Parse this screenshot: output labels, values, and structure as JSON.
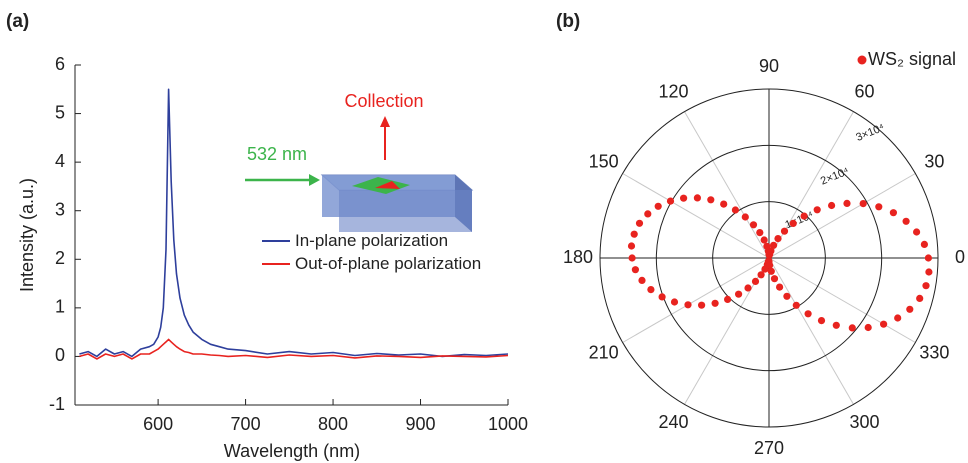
{
  "chart_data": [
    {
      "type": "line",
      "panel_label": "(a)",
      "xlabel": "Wavelength (nm)",
      "ylabel": "Intensity (a.u.)",
      "annotations": [
        "532 nm",
        "Collection"
      ],
      "x": [
        510,
        520,
        530,
        540,
        550,
        560,
        570,
        580,
        590,
        595,
        600,
        603,
        606,
        609,
        612,
        615,
        618,
        621,
        625,
        630,
        635,
        640,
        650,
        660,
        670,
        680,
        700,
        725,
        750,
        775,
        800,
        825,
        850,
        875,
        900,
        925,
        950,
        975,
        1000
      ],
      "series": [
        {
          "name": "In-plane polarization",
          "color": "#2e3f9c",
          "values": [
            0.05,
            0.1,
            0.0,
            0.15,
            0.05,
            0.1,
            0.0,
            0.15,
            0.2,
            0.25,
            0.4,
            0.6,
            1.0,
            2.2,
            5.5,
            3.6,
            2.4,
            1.7,
            1.2,
            0.85,
            0.65,
            0.5,
            0.35,
            0.25,
            0.2,
            0.15,
            0.12,
            0.05,
            0.1,
            0.05,
            0.08,
            0.02,
            0.06,
            0.03,
            0.05,
            0.0,
            0.04,
            0.02,
            0.05
          ]
        },
        {
          "name": "Out-of-plane polarization",
          "color": "#e8231f",
          "values": [
            0.0,
            0.05,
            -0.05,
            0.05,
            0.0,
            0.05,
            -0.05,
            0.05,
            0.05,
            0.1,
            0.15,
            0.2,
            0.25,
            0.3,
            0.35,
            0.3,
            0.25,
            0.2,
            0.15,
            0.1,
            0.08,
            0.05,
            0.05,
            0.03,
            0.02,
            0.0,
            0.02,
            -0.02,
            0.03,
            0.0,
            0.02,
            -0.03,
            0.01,
            0.0,
            -0.02,
            0.01,
            0.0,
            -0.01,
            0.02
          ]
        }
      ],
      "xlim": [
        505,
        1000
      ],
      "xticks": [
        600,
        700,
        800,
        900,
        1000
      ],
      "ylim": [
        -1,
        6
      ],
      "yticks": [
        -1,
        0,
        1,
        2,
        3,
        4,
        5,
        6
      ]
    },
    {
      "type": "polar",
      "panel_label": "(b)",
      "theta": [
        0,
        5,
        10,
        15,
        20,
        25,
        30,
        35,
        40,
        45,
        50,
        55,
        60,
        65,
        70,
        75,
        80,
        85,
        90,
        95,
        100,
        105,
        110,
        115,
        120,
        125,
        130,
        135,
        140,
        145,
        150,
        155,
        160,
        165,
        170,
        175,
        180,
        185,
        190,
        195,
        200,
        205,
        210,
        215,
        220,
        225,
        230,
        235,
        240,
        245,
        250,
        255,
        260,
        265,
        270,
        275,
        280,
        285,
        290,
        295,
        300,
        305,
        310,
        315,
        320,
        325,
        330,
        335,
        340,
        345,
        350,
        355
      ],
      "series": [
        {
          "name": "WS₂ signal",
          "color": "#e8231f",
          "values": [
            28300,
            27700,
            26600,
            25200,
            23500,
            21500,
            19300,
            16900,
            14500,
            12100,
            9700,
            7500,
            5500,
            3800,
            2400,
            1300,
            700,
            500,
            700,
            1200,
            2100,
            3300,
            4800,
            6500,
            8400,
            10400,
            12500,
            14600,
            16600,
            18500,
            20200,
            21700,
            22900,
            23800,
            24300,
            24500,
            24300,
            23800,
            22900,
            21700,
            20200,
            18500,
            16600,
            14600,
            12500,
            10400,
            8400,
            6500,
            4800,
            3300,
            2100,
            1200,
            700,
            500,
            700,
            1300,
            2400,
            3800,
            5500,
            7500,
            9700,
            12100,
            14500,
            16900,
            19300,
            21500,
            23500,
            25200,
            26600,
            27700,
            28300,
            28500
          ]
        }
      ],
      "thetaticks": [
        0,
        30,
        60,
        90,
        120,
        150,
        180,
        210,
        240,
        270,
        300,
        330
      ],
      "rlim": [
        0,
        30000
      ],
      "rticks": [
        {
          "value": 10000,
          "label": "1×10⁴"
        },
        {
          "value": 20000,
          "label": "2×10⁴"
        },
        {
          "value": 30000,
          "label": "3×10⁴"
        }
      ]
    }
  ]
}
